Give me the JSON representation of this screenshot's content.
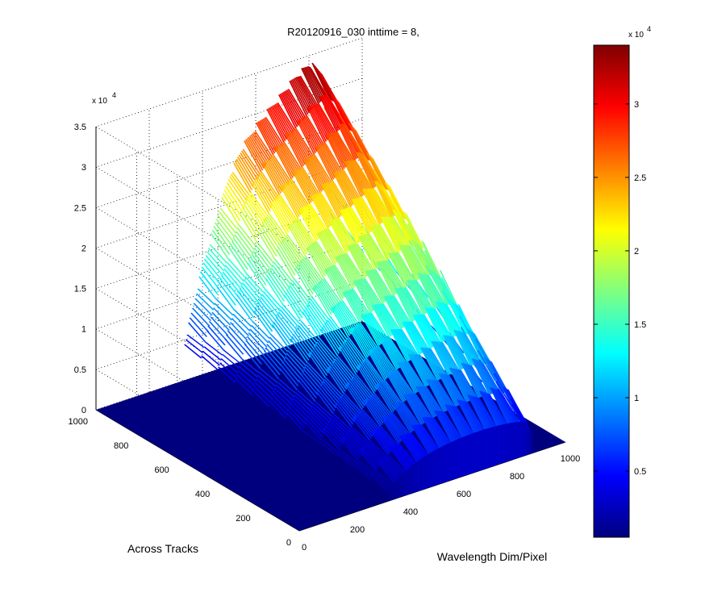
{
  "chart_data": {
    "type": "surface",
    "title": "R20120916_030 inttime = 8,",
    "xlabel": "Wavelength Dim/Pixel",
    "ylabel": "Across Tracks",
    "zlabel": "",
    "x_ticks": [
      "0",
      "200",
      "400",
      "600",
      "800",
      "1000"
    ],
    "y_ticks": [
      "0",
      "200",
      "400",
      "600",
      "800",
      "1000"
    ],
    "z_ticks": [
      "0",
      "0.5",
      "1",
      "1.5",
      "2",
      "2.5",
      "3",
      "3.5"
    ],
    "z_exponent": {
      "base": "x 10",
      "power": "4"
    },
    "xlim": [
      0,
      1000
    ],
    "ylim": [
      0,
      1000
    ],
    "zlim": [
      0,
      35000
    ],
    "grid": true,
    "colormap": "jet",
    "colorbar": {
      "ticks": [
        "0.5",
        "1",
        "1.5",
        "2",
        "2.5",
        "3"
      ],
      "range": [
        500,
        34000
      ],
      "exponent": {
        "base": "x 10",
        "power": "4"
      }
    },
    "surface_profile": {
      "wavelength_pixel": [
        0,
        50,
        100,
        150,
        200,
        250,
        300,
        350,
        400,
        450,
        500,
        550,
        600,
        650,
        700,
        750,
        800,
        850,
        900,
        950,
        1000
      ],
      "peak_counts": [
        0,
        0,
        0,
        0,
        0,
        0,
        0,
        6500,
        13000,
        18000,
        23000,
        26000,
        28000,
        29500,
        31000,
        32500,
        33500,
        32000,
        0,
        0,
        0
      ],
      "illuminated_across_track": [
        0,
        1000
      ],
      "trough_counts_at_track_0": [
        0,
        0,
        0,
        0,
        0,
        0,
        0,
        1800,
        3000,
        3800,
        4300,
        4600,
        4800,
        4900,
        4900,
        4800,
        4600,
        4200,
        0,
        0,
        0
      ]
    }
  },
  "colors": {
    "background": "#ffffff",
    "floor": "#00007f",
    "grid": "#000000"
  }
}
